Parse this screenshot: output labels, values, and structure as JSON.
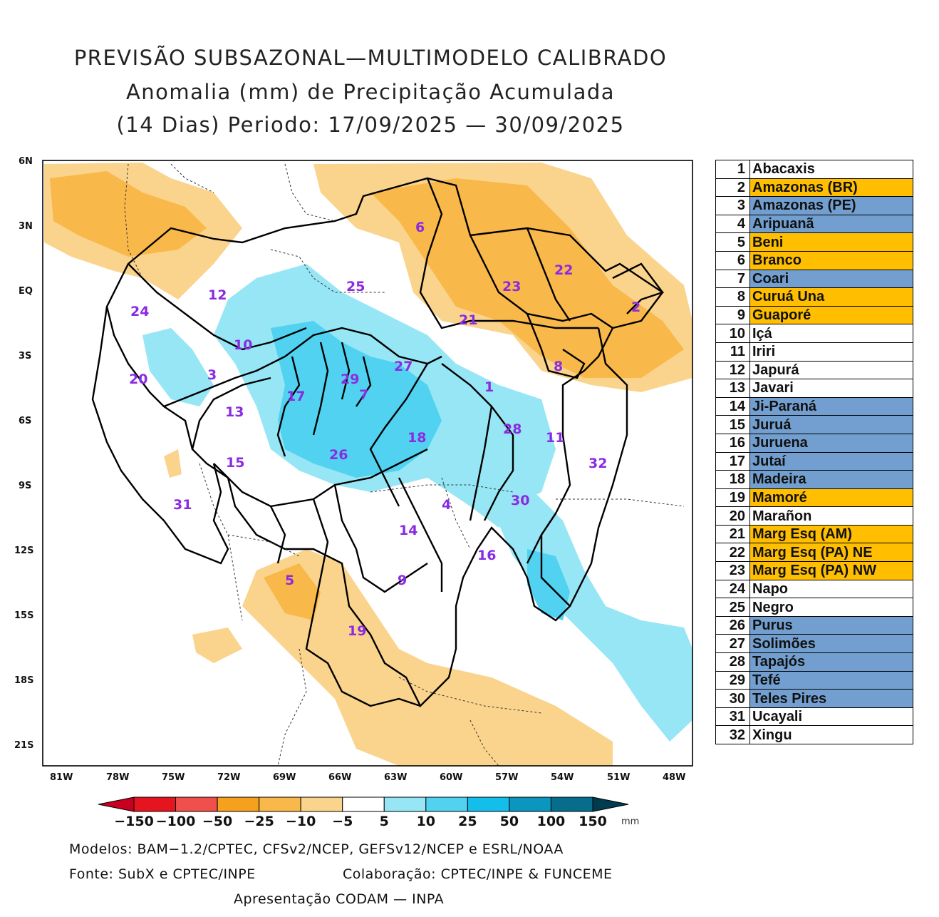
{
  "title": {
    "line1": "PREVISÃO SUBSAZONAL—MULTIMODELO CALIBRADO",
    "line2": "Anomalia (mm) de Precipitação Acumulada",
    "line3": "(14 Dias) Periodo: 17/09/2025 — 30/09/2025"
  },
  "map": {
    "lat_labels": [
      "6N",
      "3N",
      "EQ",
      "3S",
      "6S",
      "9S",
      "12S",
      "15S",
      "18S",
      "21S"
    ],
    "lon_labels": [
      "81W",
      "78W",
      "75W",
      "72W",
      "69W",
      "66W",
      "63W",
      "60W",
      "57W",
      "54W",
      "51W",
      "48W"
    ],
    "basin_labels": [
      "1",
      "2",
      "3",
      "4",
      "5",
      "6",
      "7",
      "8",
      "9",
      "10",
      "11",
      "12",
      "13",
      "14",
      "15",
      "16",
      "17",
      "18",
      "19",
      "20",
      "21",
      "22",
      "23",
      "24",
      "25",
      "26",
      "27",
      "28",
      "29",
      "30",
      "31",
      "32"
    ]
  },
  "legend": {
    "rows": [
      {
        "num": "1",
        "name": "Abacaxis",
        "status": "neutral"
      },
      {
        "num": "2",
        "name": "Amazonas (BR)",
        "status": "dry"
      },
      {
        "num": "3",
        "name": "Amazonas (PE)",
        "status": "wet"
      },
      {
        "num": "4",
        "name": "Aripuanã",
        "status": "wet"
      },
      {
        "num": "5",
        "name": "Beni",
        "status": "dry"
      },
      {
        "num": "6",
        "name": "Branco",
        "status": "dry"
      },
      {
        "num": "7",
        "name": "Coari",
        "status": "wet"
      },
      {
        "num": "8",
        "name": "Curuá Una",
        "status": "dry"
      },
      {
        "num": "9",
        "name": "Guaporé",
        "status": "dry"
      },
      {
        "num": "10",
        "name": "Içá",
        "status": "neutral"
      },
      {
        "num": "11",
        "name": "Iriri",
        "status": "neutral"
      },
      {
        "num": "12",
        "name": "Japurá",
        "status": "neutral"
      },
      {
        "num": "13",
        "name": "Javari",
        "status": "neutral"
      },
      {
        "num": "14",
        "name": "Ji-Paraná",
        "status": "wet"
      },
      {
        "num": "15",
        "name": "Juruá",
        "status": "wet"
      },
      {
        "num": "16",
        "name": "Juruena",
        "status": "wet"
      },
      {
        "num": "17",
        "name": "Jutaí",
        "status": "wet"
      },
      {
        "num": "18",
        "name": "Madeira",
        "status": "wet"
      },
      {
        "num": "19",
        "name": "Mamoré",
        "status": "dry"
      },
      {
        "num": "20",
        "name": "Marañon",
        "status": "neutral"
      },
      {
        "num": "21",
        "name": "Marg Esq (AM)",
        "status": "dry"
      },
      {
        "num": "22",
        "name": "Marg Esq (PA) NE",
        "status": "dry"
      },
      {
        "num": "23",
        "name": "Marg Esq (PA) NW",
        "status": "dry"
      },
      {
        "num": "24",
        "name": "Napo",
        "status": "neutral"
      },
      {
        "num": "25",
        "name": "Negro",
        "status": "neutral"
      },
      {
        "num": "26",
        "name": "Purus",
        "status": "wet"
      },
      {
        "num": "27",
        "name": "Solimões",
        "status": "wet"
      },
      {
        "num": "28",
        "name": "Tapajós",
        "status": "wet"
      },
      {
        "num": "29",
        "name": "Tefé",
        "status": "wet"
      },
      {
        "num": "30",
        "name": "Teles Pires",
        "status": "wet"
      },
      {
        "num": "31",
        "name": "Ucayali",
        "status": "neutral"
      },
      {
        "num": "32",
        "name": "Xingu",
        "status": "neutral"
      }
    ],
    "colors": {
      "dry": "#ffbf00",
      "wet": "#729fcf",
      "neutral": "#ffffff"
    }
  },
  "colorbar": {
    "labels": [
      "−150",
      "−100",
      "−50",
      "−25",
      "−10",
      "−5",
      "5",
      "10",
      "25",
      "50",
      "100",
      "150"
    ],
    "unit": "mm",
    "colors": [
      "#c8001e",
      "#e6141e",
      "#f0504b",
      "#f5a01e",
      "#f8b84a",
      "#fad48c",
      "#ffffff",
      "#96e6f5",
      "#50d2f0",
      "#14beeb",
      "#0a96be",
      "#066e8c",
      "#003c50"
    ]
  },
  "credits": {
    "models": "Modelos: BAM−1.2/CPTEC, CFSv2/NCEP, GEFSv12/NCEP e ESRL/NOAA",
    "source": "Fonte: SubX e CPTEC/INPE",
    "collab": "Colaboração: CPTEC/INPE & FUNCEME",
    "presentation": "Apresentação CODAM — INPA"
  }
}
